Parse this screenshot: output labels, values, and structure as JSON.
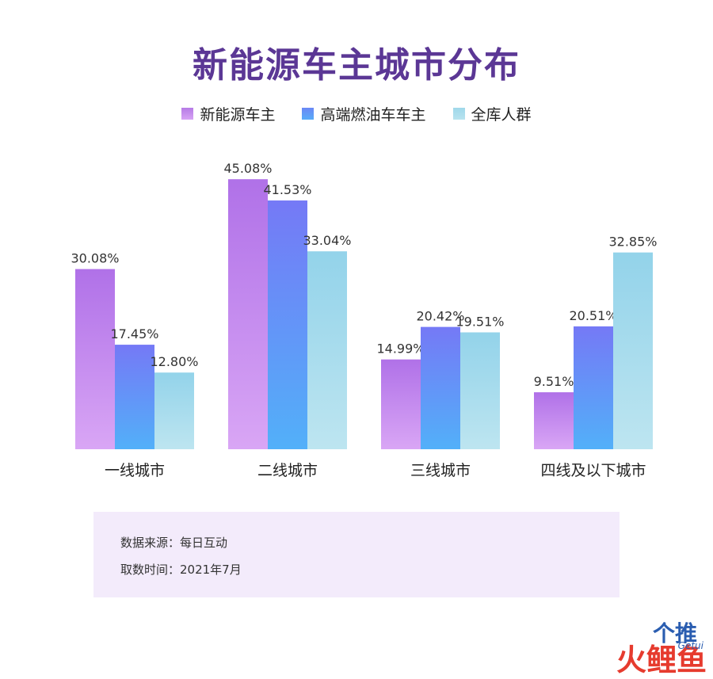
{
  "title": "新能源车主城市分布",
  "legend": [
    {
      "label": "新能源车主",
      "color": "#b67be6"
    },
    {
      "label": "高端燃油车车主",
      "color": "#6b88f5"
    },
    {
      "label": "全库人群",
      "color": "#9fd8ea"
    }
  ],
  "chart_data": {
    "type": "bar",
    "title": "新能源车主城市分布",
    "categories": [
      "一线城市",
      "二线城市",
      "三线城市",
      "四线及以下城市"
    ],
    "series": [
      {
        "name": "新能源车主",
        "values": [
          30.08,
          45.08,
          14.99,
          9.51
        ]
      },
      {
        "name": "高端燃油车车主",
        "values": [
          17.45,
          41.53,
          20.42,
          20.51
        ]
      },
      {
        "name": "全库人群",
        "values": [
          12.8,
          33.04,
          19.51,
          32.85
        ]
      }
    ],
    "unit": "%",
    "ylim": [
      0,
      50
    ],
    "grid": false,
    "legend_position": "top"
  },
  "source": {
    "line1": "数据来源：每日互动",
    "line2": "取数时间：2021年7月"
  },
  "watermark": {
    "text1": "个推",
    "text2": "火鲤鱼",
    "text3": "Getui"
  }
}
